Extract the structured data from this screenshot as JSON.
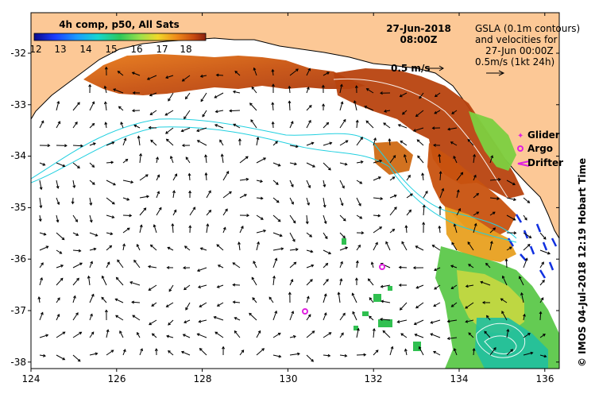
{
  "header": {
    "date": "27-Jun-2018",
    "time": "08:00Z"
  },
  "colorbar": {
    "title": "4h comp, p50, All Sats",
    "ticks": [
      "12",
      "13",
      "14",
      "15",
      "16",
      "17",
      "18"
    ],
    "colors": [
      "#0a0a8a",
      "#1b3cff",
      "#1a9cff",
      "#15d6d0",
      "#2ec85a",
      "#9ee04a",
      "#f0d82a",
      "#ef8a1a",
      "#c84a10",
      "#8a2210"
    ]
  },
  "legend": {
    "gsla_line1": "GSLA (0.1m contours)",
    "gsla_line2": "and velocities for",
    "gsla_line3": "27-Jun 00:00Z",
    "gsla_line4": "0.5m/s (1kt 24h)",
    "velocity_scale": "0.5 m/s",
    "glider": "Glider",
    "argo": "Argo",
    "drifter": "Drifter"
  },
  "copyright": "© IMOS 04-Jul-2018 12:19 Hobart Time",
  "axes": {
    "lon_ticks": [
      "124",
      "126",
      "128",
      "130",
      "132",
      "134",
      "136"
    ],
    "lat_ticks": [
      "-32",
      "-33",
      "-34",
      "-35",
      "-36",
      "-37",
      "-38"
    ]
  },
  "colors": {
    "land": "#fcc896",
    "ocean": "#ffffff",
    "contour": "#22d0e0",
    "markers": "#e020e0"
  }
}
